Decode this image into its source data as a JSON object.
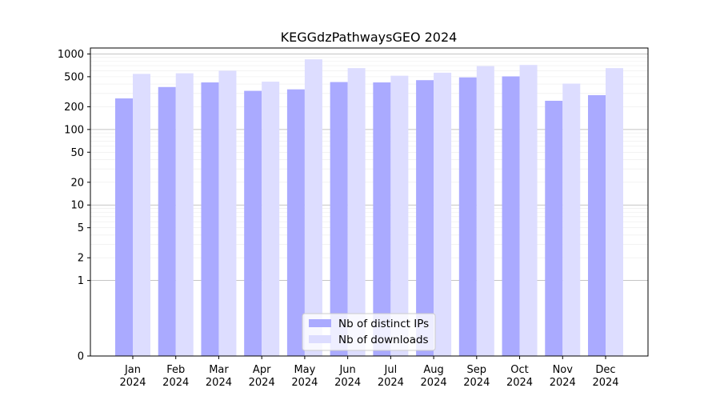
{
  "chart_data": {
    "type": "bar",
    "title": "KEGGdzPathwaysGEO 2024",
    "xlabel": "",
    "ylabel": "",
    "yscale": "symlog",
    "ylim": [
      0,
      1200
    ],
    "y_ticks": [
      0,
      1,
      2,
      5,
      10,
      20,
      50,
      100,
      200,
      500,
      1000
    ],
    "grid": "horizontal",
    "legend_position": "bottom-center",
    "categories": [
      {
        "month": "Jan",
        "year": "2024"
      },
      {
        "month": "Feb",
        "year": "2024"
      },
      {
        "month": "Mar",
        "year": "2024"
      },
      {
        "month": "Apr",
        "year": "2024"
      },
      {
        "month": "May",
        "year": "2024"
      },
      {
        "month": "Jun",
        "year": "2024"
      },
      {
        "month": "Jul",
        "year": "2024"
      },
      {
        "month": "Aug",
        "year": "2024"
      },
      {
        "month": "Sep",
        "year": "2024"
      },
      {
        "month": "Oct",
        "year": "2024"
      },
      {
        "month": "Nov",
        "year": "2024"
      },
      {
        "month": "Dec",
        "year": "2024"
      }
    ],
    "series": [
      {
        "name": "Nb of distinct IPs",
        "color": "#aaaaff",
        "values": [
          258,
          365,
          420,
          325,
          340,
          425,
          420,
          450,
          490,
          505,
          240,
          285
        ]
      },
      {
        "name": "Nb of downloads",
        "color": "#ddddff",
        "values": [
          545,
          555,
          600,
          430,
          850,
          650,
          515,
          565,
          690,
          715,
          405,
          650
        ]
      }
    ]
  }
}
